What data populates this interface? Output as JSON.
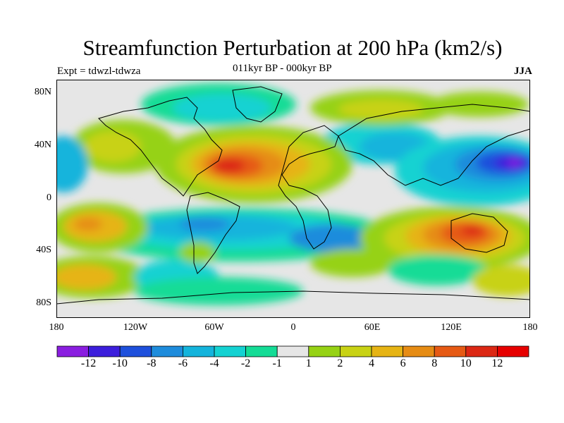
{
  "title": "Streamfunction Perturbation at 200 hPa (km2/s)",
  "experiment": "Expt = tdwzl-tdwza",
  "period": "011kyr BP - 000kyr BP",
  "season": "JJA",
  "lat_labels": [
    "80N",
    "40N",
    "0",
    "40S",
    "80S"
  ],
  "lon_labels": [
    "180",
    "120W",
    "60W",
    "0",
    "60E",
    "120E",
    "180"
  ],
  "colorbar": {
    "labels": [
      "-12",
      "-10",
      "-8",
      "-6",
      "-4",
      "-2",
      "-1",
      "1",
      "2",
      "4",
      "6",
      "8",
      "10",
      "12"
    ],
    "colors": [
      "#8a1ee0",
      "#3c1edc",
      "#1e50dc",
      "#1e8cdc",
      "#14b4dc",
      "#14d2d2",
      "#14dc96",
      "#e6e6e6",
      "#96d214",
      "#c8d214",
      "#e6b414",
      "#e68c14",
      "#e65a14",
      "#dc2814",
      "#e60000"
    ]
  }
}
